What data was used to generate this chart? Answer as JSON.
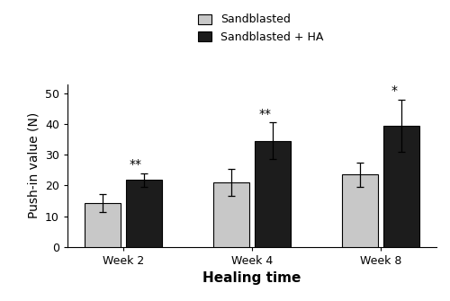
{
  "categories": [
    "Week 2",
    "Week 4",
    "Week 8"
  ],
  "sandblasted_means": [
    14.2,
    21.0,
    23.5
  ],
  "sandblasted_errors": [
    3.0,
    4.5,
    4.0
  ],
  "ha_means": [
    21.8,
    34.5,
    39.5
  ],
  "ha_errors": [
    2.2,
    6.0,
    8.5
  ],
  "sandblasted_color": "#c8c8c8",
  "ha_color": "#1c1c1c",
  "bar_width": 0.28,
  "bar_spacing": 0.04,
  "xlabel": "Healing time",
  "ylabel": "Push-in value (N)",
  "ylim": [
    0,
    53
  ],
  "yticks": [
    0,
    10,
    20,
    30,
    40,
    50
  ],
  "legend_labels": [
    "Sandblasted",
    "Sandblasted + HA"
  ],
  "significance": [
    "**",
    "**",
    "*"
  ],
  "label_fontsize": 10,
  "tick_fontsize": 9,
  "legend_fontsize": 9,
  "annot_fontsize": 10,
  "capsize": 3,
  "xlabel_fontsize": 11
}
